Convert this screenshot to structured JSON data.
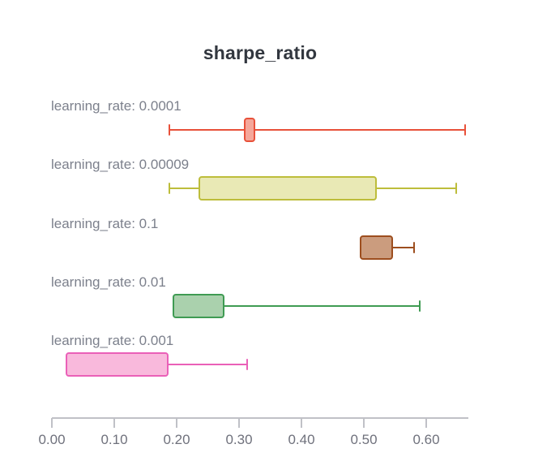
{
  "chart_data": {
    "type": "box",
    "orientation": "horizontal",
    "title": "sharpe_ratio",
    "xlabel": "",
    "ylabel": "",
    "xlim": [
      0,
      0.667
    ],
    "grid": false,
    "x_ticks": [
      {
        "value": 0.0,
        "label": "0.00"
      },
      {
        "value": 0.1,
        "label": "0.10"
      },
      {
        "value": 0.2,
        "label": "0.20"
      },
      {
        "value": 0.3,
        "label": "0.30"
      },
      {
        "value": 0.4,
        "label": "0.40"
      },
      {
        "value": 0.5,
        "label": "0.50"
      },
      {
        "value": 0.6,
        "label": "0.60"
      }
    ],
    "series": [
      {
        "label": "learning_rate: 0.0001",
        "min": 0.188,
        "q1": 0.308,
        "q3": 0.326,
        "max": 0.662,
        "stroke": "#e8513a",
        "fill": "#f5a79a"
      },
      {
        "label": "learning_rate: 0.00009",
        "min": 0.188,
        "q1": 0.235,
        "q3": 0.521,
        "max": 0.648,
        "stroke": "#bdbd3b",
        "fill": "#e9e9b5"
      },
      {
        "label": "learning_rate: 0.1",
        "min": 0.493,
        "q1": 0.493,
        "q3": 0.547,
        "max": 0.581,
        "stroke": "#9d4e1f",
        "fill": "#cb9c7e"
      },
      {
        "label": "learning_rate: 0.01",
        "min": 0.193,
        "q1": 0.193,
        "q3": 0.277,
        "max": 0.59,
        "stroke": "#3f9b53",
        "fill": "#aad1ad"
      },
      {
        "label": "learning_rate: 0.001",
        "min": 0.022,
        "q1": 0.022,
        "q3": 0.187,
        "max": 0.313,
        "stroke": "#ea60b8",
        "fill": "#f9b9dc"
      }
    ]
  }
}
